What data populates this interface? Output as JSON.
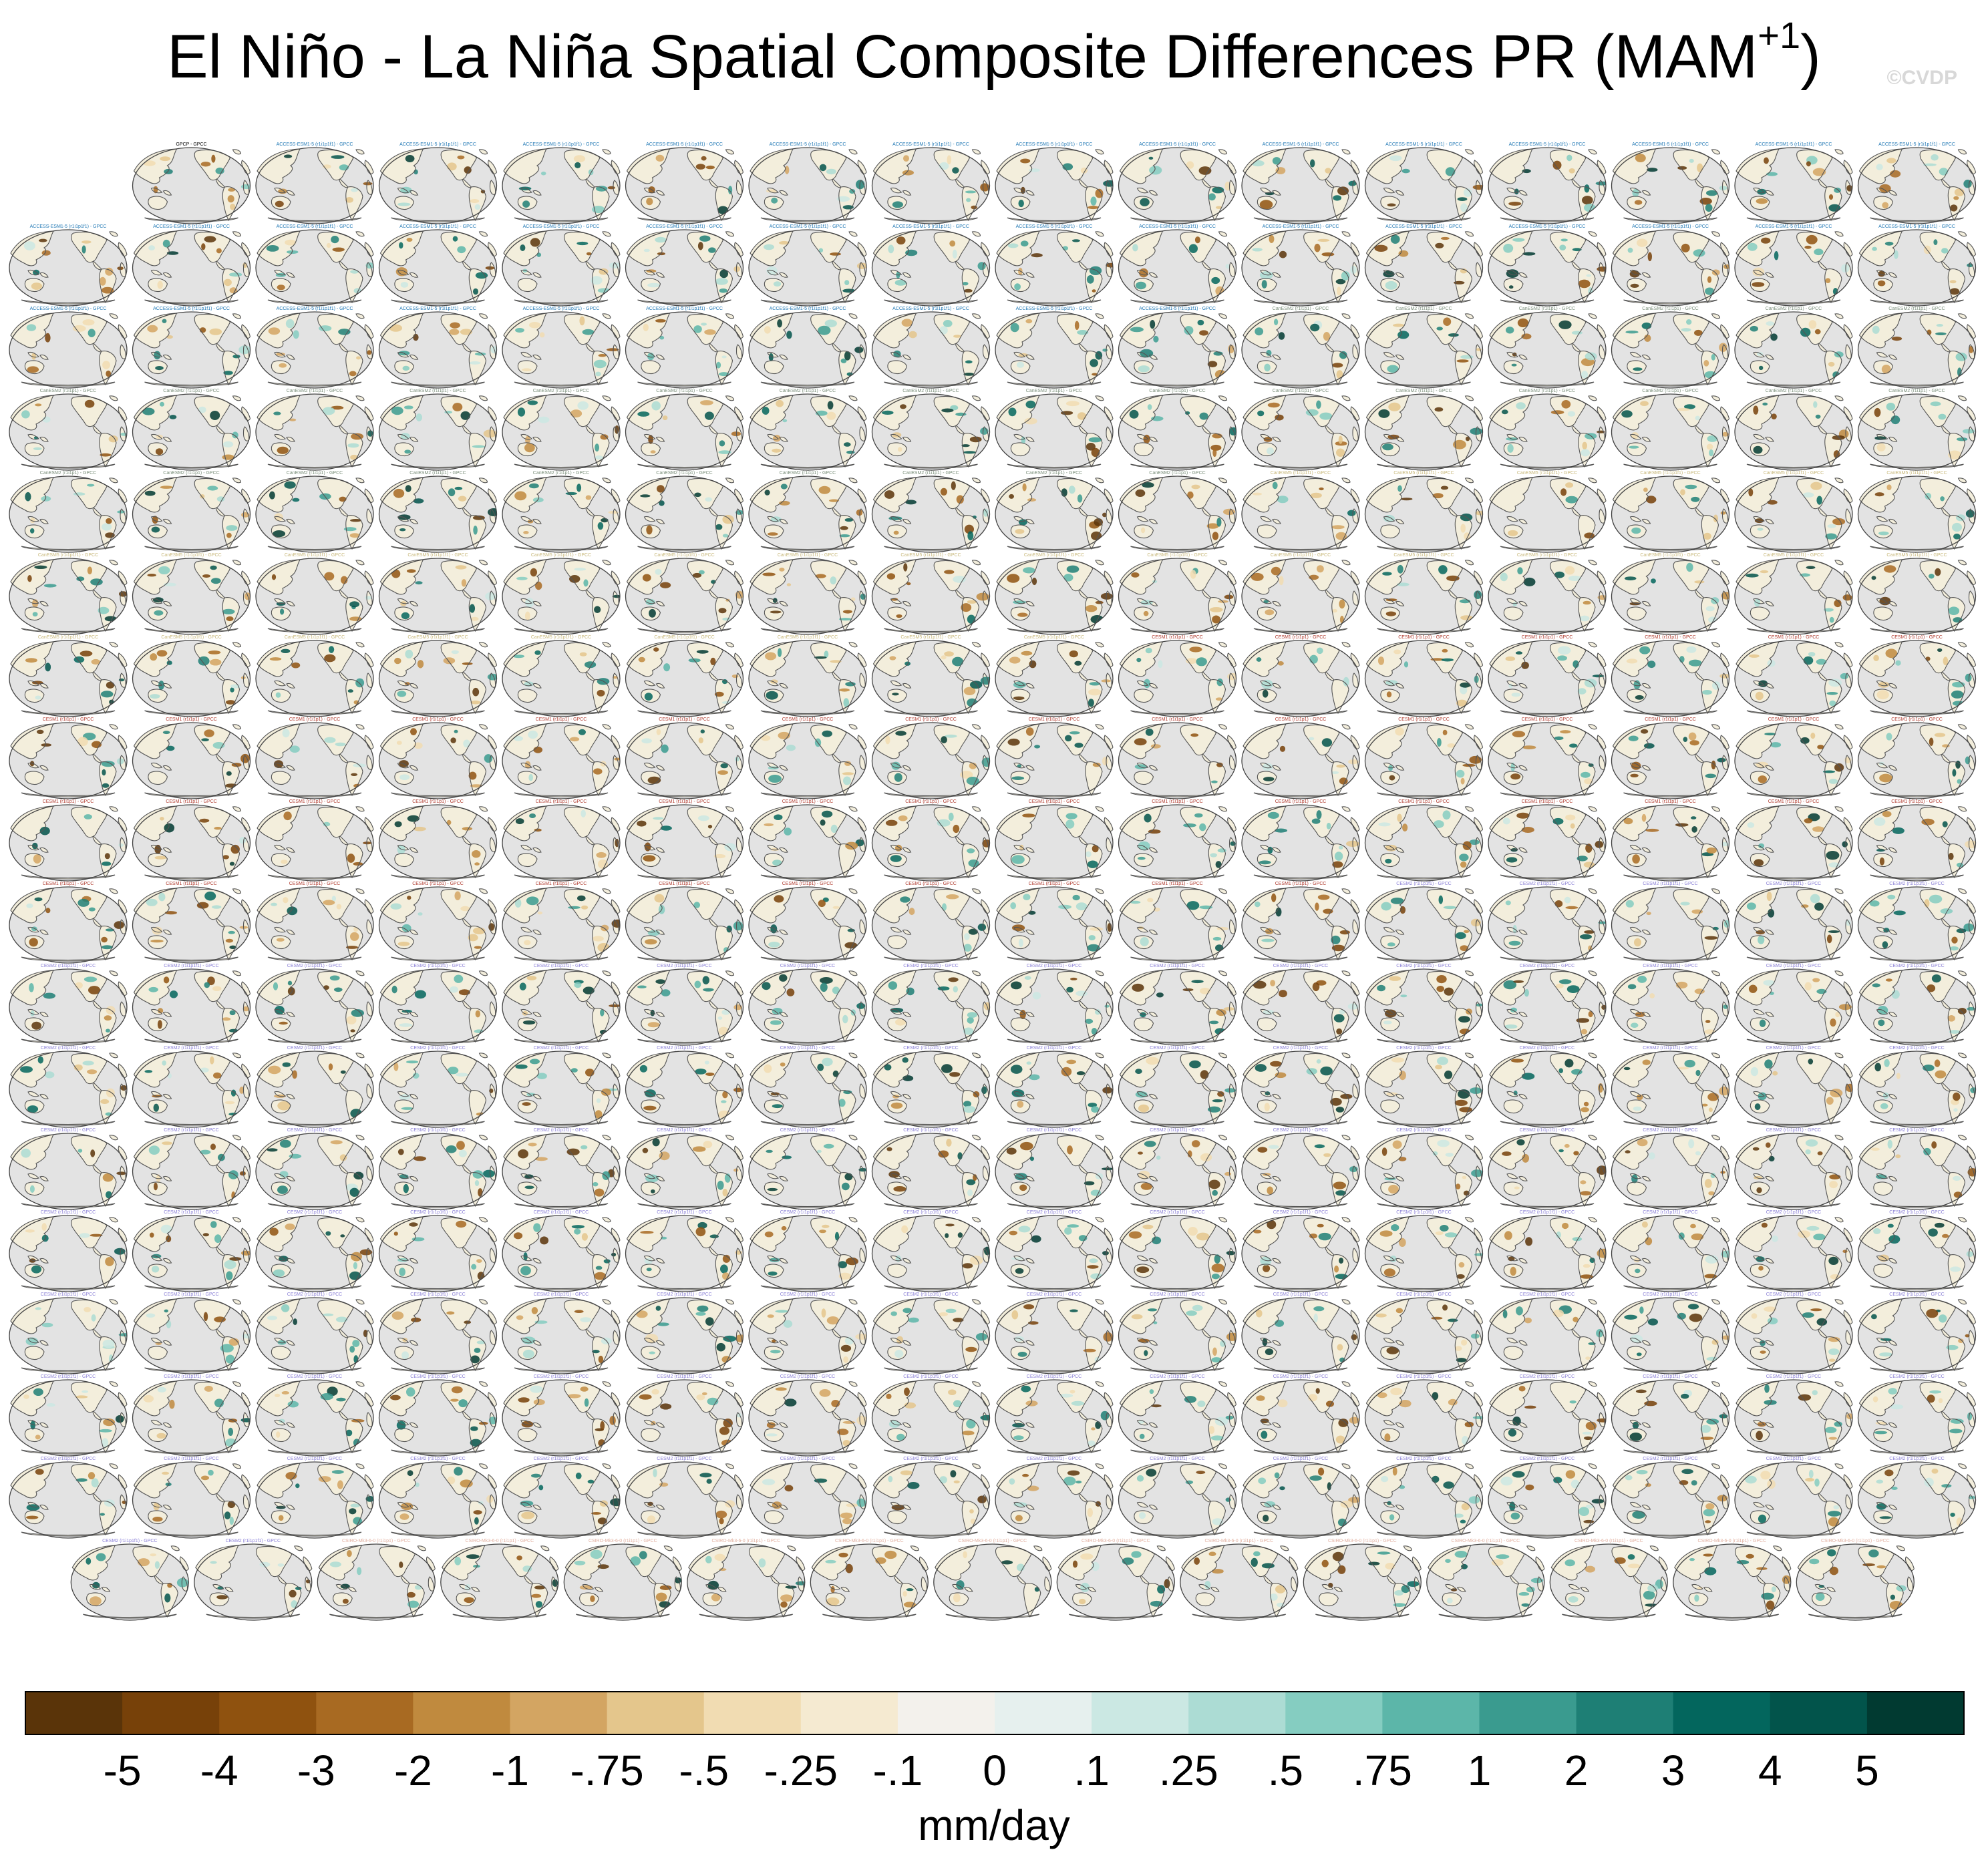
{
  "chart_data": {
    "type": "heatmap",
    "title_main": "El Niño - La Niña Spatial Composite Differences PR (MAM",
    "title_sup": "+1",
    "title_close": ")",
    "watermark": "©CVDP",
    "variable": "PR",
    "season": "MAM+1",
    "projection": "global Robinson-style map centred on the Pacific",
    "grid": {
      "rows": 18,
      "cols": 16,
      "first_row_panels": 15,
      "last_row_panels": 15
    },
    "label_colors": {
      "observations": "#000000",
      "ACCESS-ESM1-5": "#1f77b4",
      "CanESM2": "#7a8f7a",
      "CanESM5": "#c8b87a",
      "CESM1": "#b03a2e",
      "CESM2": "#8a7fd6",
      "CSIRO": "#e2b0a0"
    },
    "panel_labels": {
      "observations": "GPCP - GPCC",
      "ACCESS-ESM1-5": "ACCESS-ESM1-5 (r1i1p1f1) - GPCC",
      "CanESM2": "CanESM2 (r1i1p1) - GPCC",
      "CanESM5": "CanESM5 (r1i1p1f1) - GPCC",
      "CESM1": "CESM1 (r1i1p1) - GPCC",
      "CESM2": "CESM2 (r1i1p1f1) - GPCC",
      "CSIRO": "CSIRO-Mk3-6-0 (r1i1p1) - GPCC"
    },
    "colorbar": {
      "labels": [
        "-5",
        "-4",
        "-3",
        "-2",
        "-1",
        "-.75",
        "-.5",
        "-.25",
        "-.1",
        "0",
        ".1",
        ".25",
        ".5",
        ".75",
        "1",
        "2",
        "3",
        "4",
        "5"
      ],
      "colors": [
        "#5a3409",
        "#774109",
        "#8f520f",
        "#a86a22",
        "#c08a3e",
        "#d3a562",
        "#e4c68c",
        "#f1dcb2",
        "#f5ead1",
        "#f3f1ec",
        "#e6f0ee",
        "#cbe8e3",
        "#acdcd4",
        "#85cdc1",
        "#5cb6a9",
        "#3a9b8f",
        "#1e7f75",
        "#03665d",
        "#02544b",
        "#013a31"
      ],
      "xlabel": "mm/day"
    }
  }
}
